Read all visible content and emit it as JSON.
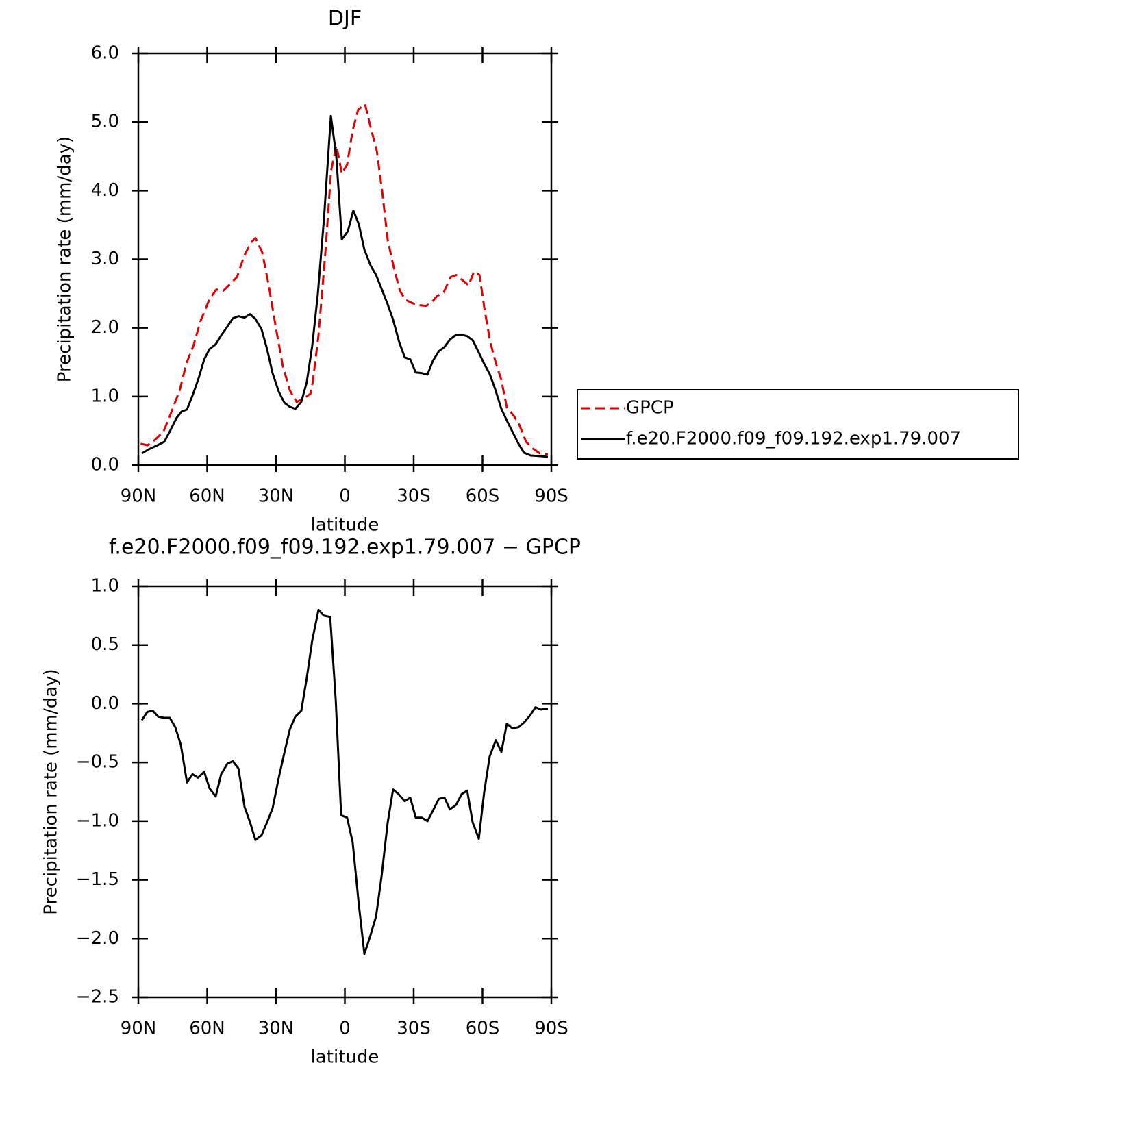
{
  "chart_data": [
    {
      "type": "line",
      "title": "DJF",
      "xlabel": "latitude",
      "ylabel": "Precipitation rate (mm/day)",
      "xlim": [
        90,
        -90
      ],
      "xticks": [
        {
          "value": 90,
          "label": "90N"
        },
        {
          "value": 60,
          "label": "60N"
        },
        {
          "value": 30,
          "label": "30N"
        },
        0,
        {
          "value": -30,
          "label": "30S"
        },
        {
          "value": -60,
          "label": "60S"
        },
        {
          "value": -90,
          "label": "90S"
        }
      ],
      "ylim": [
        0,
        6
      ],
      "yticks": [
        {
          "value": 0,
          "label": "0.0"
        },
        {
          "value": 1,
          "label": "1.0"
        },
        {
          "value": 2,
          "label": "2.0"
        },
        {
          "value": 3,
          "label": "3.0"
        },
        {
          "value": 4,
          "label": "4.0"
        },
        {
          "value": 5,
          "label": "5.0"
        },
        {
          "value": 6,
          "label": "6.0"
        }
      ],
      "grid": false,
      "legend": "right",
      "series": [
        {
          "name": "GPCP",
          "color": "#e00000",
          "line_style": "dashed",
          "x": [
            89,
            86,
            83,
            79,
            76,
            72,
            69,
            66,
            63,
            59,
            56,
            53,
            50,
            47,
            44,
            41,
            39,
            36,
            33,
            30,
            27,
            24,
            21,
            18,
            15,
            14,
            11.5,
            8.5,
            6,
            3.7,
            1.3,
            -1,
            -3.4,
            -5.8,
            -8.8,
            -11.2,
            -13.9,
            -16.3,
            -18.7,
            -21.3,
            -24,
            -26.4,
            -29.4,
            -32.4,
            -35.4,
            -37.8,
            -40.1,
            -43.1,
            -46.1,
            -48.5,
            -51.5,
            -53.9,
            -56.3,
            -58.7,
            -61,
            -63.4,
            -65.8,
            -68.2,
            -70.6,
            -73.6,
            -76,
            -79,
            -82,
            -85,
            -88.5
          ],
          "values": [
            0.31,
            0.29,
            0.36,
            0.49,
            0.74,
            1.09,
            1.49,
            1.74,
            2.09,
            2.42,
            2.56,
            2.54,
            2.64,
            2.74,
            3.04,
            3.24,
            3.31,
            3.1,
            2.59,
            1.99,
            1.44,
            1.09,
            0.92,
            0.97,
            1.04,
            1.21,
            1.89,
            3.09,
            4.29,
            4.66,
            4.25,
            4.38,
            4.88,
            5.18,
            5.26,
            4.93,
            4.58,
            3.98,
            3.28,
            2.88,
            2.54,
            2.41,
            2.36,
            2.33,
            2.32,
            2.37,
            2.46,
            2.52,
            2.74,
            2.77,
            2.69,
            2.62,
            2.82,
            2.77,
            2.24,
            1.79,
            1.49,
            1.24,
            0.84,
            0.72,
            0.59,
            0.34,
            0.24,
            0.17,
            0.16
          ]
        },
        {
          "name": "f.e20.F2000.f09_f09.192.exp1.79.007",
          "color": "#000000",
          "line_style": "solid",
          "x": [
            88.5,
            85.5,
            81.6,
            78.7,
            76.3,
            73.3,
            71.2,
            68.8,
            66.1,
            63.7,
            61.3,
            59,
            56.3,
            53.9,
            51.2,
            48.8,
            46.4,
            43.7,
            41.3,
            39,
            36.3,
            33.9,
            31.5,
            28.8,
            26.4,
            24,
            21.6,
            19,
            16.6,
            14.2,
            11.8,
            9.1,
            6.1,
            3.7,
            1.3,
            -1.3,
            -3.7,
            -6.1,
            -8.5,
            -11.2,
            -13.6,
            -16,
            -18.7,
            -21,
            -23.7,
            -26.1,
            -28.5,
            -30.9,
            -33.6,
            -36,
            -38.4,
            -41,
            -43.4,
            -45.8,
            -48.5,
            -50.9,
            -53.3,
            -55.7,
            -58.4,
            -60.7,
            -63.1,
            -65.5,
            -68.2,
            -70.6,
            -73,
            -75.7,
            -78.1,
            -81,
            -85.5,
            -88.5
          ],
          "values": [
            0.17,
            0.23,
            0.29,
            0.34,
            0.49,
            0.69,
            0.78,
            0.81,
            1.04,
            1.27,
            1.54,
            1.69,
            1.76,
            1.89,
            2.02,
            2.14,
            2.17,
            2.15,
            2.2,
            2.13,
            1.98,
            1.69,
            1.34,
            1.07,
            0.91,
            0.85,
            0.82,
            0.92,
            1.21,
            1.74,
            2.49,
            3.59,
            5.09,
            4.49,
            3.29,
            3.41,
            3.71,
            3.51,
            3.14,
            2.91,
            2.77,
            2.57,
            2.34,
            2.12,
            1.79,
            1.57,
            1.54,
            1.35,
            1.34,
            1.32,
            1.52,
            1.66,
            1.72,
            1.83,
            1.9,
            1.9,
            1.88,
            1.82,
            1.64,
            1.48,
            1.33,
            1.11,
            0.82,
            0.65,
            0.49,
            0.31,
            0.18,
            0.14,
            0.13,
            0.12
          ]
        }
      ]
    },
    {
      "type": "line",
      "title": "f.e20.F2000.f09_f09.192.exp1.79.007 − GPCP",
      "xlabel": "latitude",
      "ylabel": "Precipitation rate (mm/day)",
      "xlim": [
        90,
        -90
      ],
      "xticks": [
        {
          "value": 90,
          "label": "90N"
        },
        {
          "value": 60,
          "label": "60N"
        },
        {
          "value": 30,
          "label": "30N"
        },
        0,
        {
          "value": -30,
          "label": "30S"
        },
        {
          "value": -60,
          "label": "60S"
        },
        {
          "value": -90,
          "label": "90S"
        }
      ],
      "ylim": [
        -2.5,
        1
      ],
      "yticks": [
        {
          "value": -2.5,
          "label": "−2.5"
        },
        {
          "value": -2,
          "label": "−2.0"
        },
        {
          "value": -1.5,
          "label": "−1.5"
        },
        {
          "value": -1,
          "label": "−1.0"
        },
        {
          "value": -0.5,
          "label": "−0.5"
        },
        {
          "value": 0,
          "label": "0.0"
        },
        {
          "value": 0.5,
          "label": "0.5"
        },
        {
          "value": 1,
          "label": "1.0"
        }
      ],
      "grid": false,
      "color": "#000000",
      "x": [
        88.5,
        86.1,
        83.7,
        81.3,
        78.7,
        76.3,
        73.9,
        71.5,
        68.8,
        66.4,
        64,
        61.3,
        59,
        56.3,
        53.9,
        51.2,
        48.8,
        46.4,
        43.7,
        41.3,
        39,
        36.3,
        33.9,
        31.5,
        28.8,
        26.4,
        24,
        21.6,
        19,
        16.6,
        14.2,
        11.5,
        9.1,
        6.4,
        4,
        1.6,
        -1,
        -3.4,
        -6.1,
        -8.5,
        -10.9,
        -13.6,
        -16,
        -18.7,
        -21,
        -23.4,
        -26.1,
        -28.5,
        -30.9,
        -33.6,
        -36,
        -38.4,
        -41,
        -43.4,
        -45.8,
        -48.5,
        -50.9,
        -53.3,
        -55.7,
        -58.4,
        -60.7,
        -63.1,
        -65.8,
        -68.2,
        -70.6,
        -73,
        -75.7,
        -78.1,
        -80.7,
        -83.1,
        -85.5,
        -88.5
      ],
      "values": [
        -0.14,
        -0.07,
        -0.06,
        -0.11,
        -0.12,
        -0.12,
        -0.2,
        -0.35,
        -0.67,
        -0.6,
        -0.63,
        -0.58,
        -0.72,
        -0.79,
        -0.6,
        -0.51,
        -0.49,
        -0.55,
        -0.88,
        -1.01,
        -1.16,
        -1.12,
        -1.01,
        -0.89,
        -0.63,
        -0.42,
        -0.22,
        -0.11,
        -0.06,
        0.22,
        0.54,
        0.8,
        0.75,
        0.74,
        0.04,
        -0.95,
        -0.97,
        -1.18,
        -1.71,
        -2.13,
        -1.99,
        -1.81,
        -1.47,
        -1.01,
        -0.73,
        -0.77,
        -0.83,
        -0.8,
        -0.97,
        -0.97,
        -1.0,
        -0.91,
        -0.81,
        -0.8,
        -0.9,
        -0.86,
        -0.77,
        -0.74,
        -1.01,
        -1.15,
        -0.76,
        -0.45,
        -0.31,
        -0.41,
        -0.17,
        -0.21,
        -0.2,
        -0.16,
        -0.1,
        -0.03,
        -0.05,
        -0.04
      ]
    }
  ]
}
